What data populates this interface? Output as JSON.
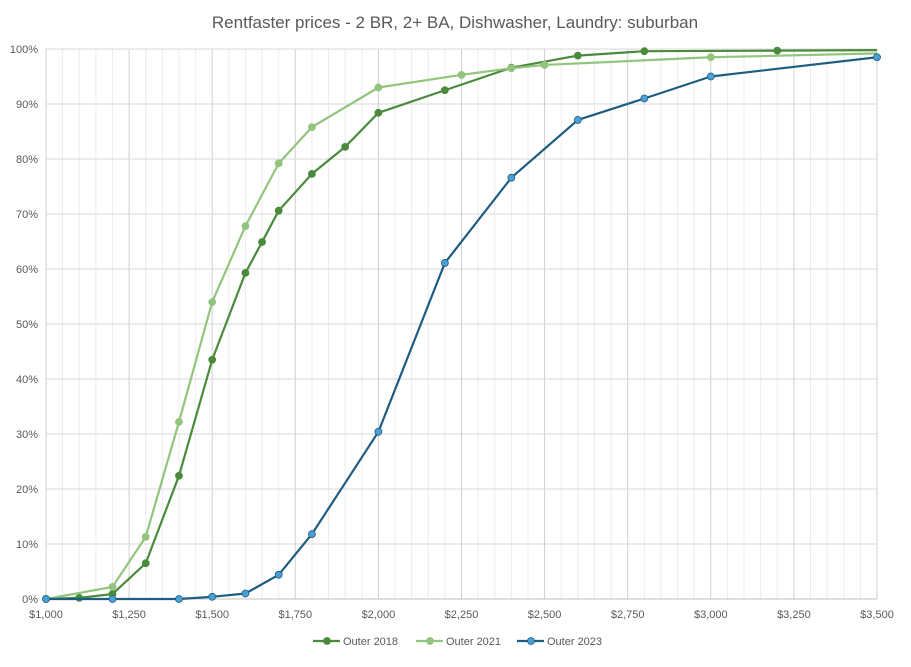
{
  "chart_data": {
    "type": "line",
    "title": "Rentfaster prices - 2 BR, 2+ BA, Dishwasher, Laundry: suburban",
    "xlabel": "",
    "ylabel": "",
    "xlim": [
      1000,
      3500
    ],
    "ylim": [
      0,
      100
    ],
    "x_ticks": [
      1000,
      1250,
      1500,
      1750,
      2000,
      2250,
      2500,
      2750,
      3000,
      3250,
      3500
    ],
    "x_tick_labels": [
      "$1,000",
      "$1,250",
      "$1,500",
      "$1,750",
      "$2,000",
      "$2,250",
      "$2,500",
      "$2,750",
      "$3,000",
      "$3,250",
      "$3,500"
    ],
    "y_ticks": [
      0,
      10,
      20,
      30,
      40,
      50,
      60,
      70,
      80,
      90,
      100
    ],
    "y_tick_labels": [
      "0%",
      "10%",
      "20%",
      "30%",
      "40%",
      "50%",
      "60%",
      "70%",
      "80%",
      "90%",
      "100%"
    ],
    "grid": true,
    "legend_position": "bottom",
    "series": [
      {
        "name": "Outer 2018",
        "color": "#4a8a3c",
        "marker": "#4a8a3c",
        "points": [
          [
            1000,
            0
          ],
          [
            1100,
            0.2
          ],
          [
            1200,
            0.9
          ],
          [
            1300,
            6.5
          ],
          [
            1400,
            22.4
          ],
          [
            1500,
            43.5
          ],
          [
            1600,
            59.3
          ],
          [
            1650,
            64.9
          ],
          [
            1700,
            70.6
          ],
          [
            1800,
            77.3
          ],
          [
            1900,
            82.2
          ],
          [
            2000,
            88.4
          ],
          [
            2200,
            92.5
          ],
          [
            2400,
            96.6
          ],
          [
            2600,
            98.8
          ],
          [
            2800,
            99.6
          ],
          [
            3200,
            99.7
          ],
          [
            3500,
            99.8
          ]
        ],
        "marker_hidden_last": true
      },
      {
        "name": "Outer 2021",
        "color": "#93c47d",
        "marker": "#93c47d",
        "points": [
          [
            1000,
            0
          ],
          [
            1200,
            2.2
          ],
          [
            1300,
            11.3
          ],
          [
            1400,
            32.2
          ],
          [
            1500,
            54
          ],
          [
            1600,
            67.8
          ],
          [
            1700,
            79.2
          ],
          [
            1800,
            85.8
          ],
          [
            2000,
            93
          ],
          [
            2250,
            95.3
          ],
          [
            2400,
            96.5
          ],
          [
            2500,
            97.1
          ],
          [
            3000,
            98.5
          ],
          [
            3500,
            99.2
          ]
        ],
        "marker_hidden_last": true
      },
      {
        "name": "Outer 2023",
        "color": "#1f5c82",
        "marker": "#4a9fd4",
        "points": [
          [
            1000,
            0
          ],
          [
            1200,
            0
          ],
          [
            1400,
            0
          ],
          [
            1500,
            0.4
          ],
          [
            1600,
            1
          ],
          [
            1700,
            4.4
          ],
          [
            1800,
            11.8
          ],
          [
            2000,
            30.4
          ],
          [
            2200,
            61.1
          ],
          [
            2400,
            76.6
          ],
          [
            2600,
            87.1
          ],
          [
            2800,
            91
          ],
          [
            3000,
            95
          ],
          [
            3500,
            98.5
          ]
        ],
        "marker_hidden_last": false
      }
    ]
  }
}
